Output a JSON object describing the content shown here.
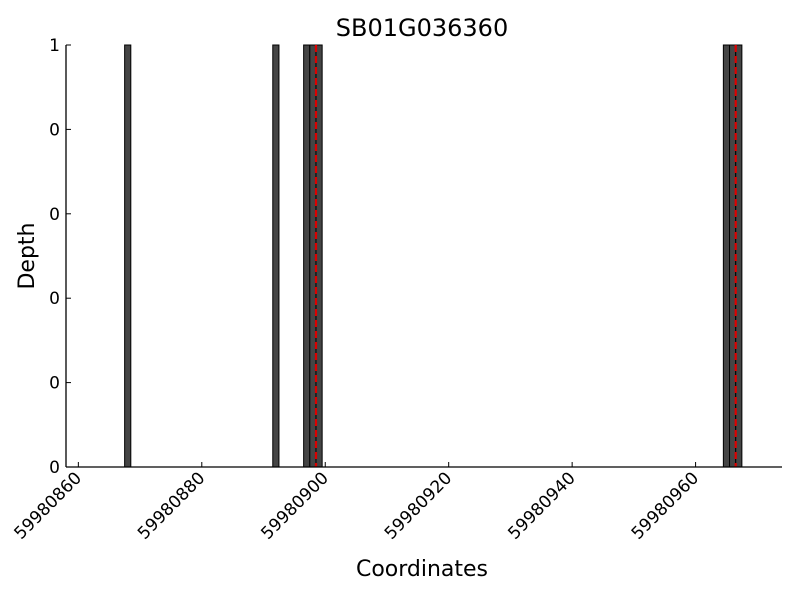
{
  "chart_data": {
    "type": "bar",
    "title": "SB01G036360",
    "xlabel": "Coordinates",
    "ylabel": "Depth",
    "xlim": [
      59980858,
      59980974
    ],
    "ylim": [
      0,
      1
    ],
    "xticks": [
      59980860,
      59980880,
      59980900,
      59980920,
      59980940,
      59980960
    ],
    "xtick_labels": [
      "59980860",
      "59980880",
      "59980900",
      "59980920",
      "59980940",
      "59980960"
    ],
    "yticks": [
      0,
      0.2,
      0.4,
      0.6,
      0.8,
      1
    ],
    "ytick_labels": [
      "0",
      "0",
      "0",
      "0",
      "0",
      "1"
    ],
    "bar_width": 1,
    "bars": [
      {
        "x": 59980868,
        "value": 1
      },
      {
        "x": 59980892,
        "value": 1
      },
      {
        "x": 59980897,
        "value": 1
      },
      {
        "x": 59980898,
        "value": 1
      },
      {
        "x": 59980899,
        "value": 1
      },
      {
        "x": 59980965,
        "value": 1
      },
      {
        "x": 59980966,
        "value": 1
      },
      {
        "x": 59980967,
        "value": 1
      }
    ],
    "markers": [
      59980898.5,
      59980966.5
    ],
    "bar_color": "#454545",
    "marker_color": "#dd0000",
    "grid": false,
    "legend": "none"
  }
}
